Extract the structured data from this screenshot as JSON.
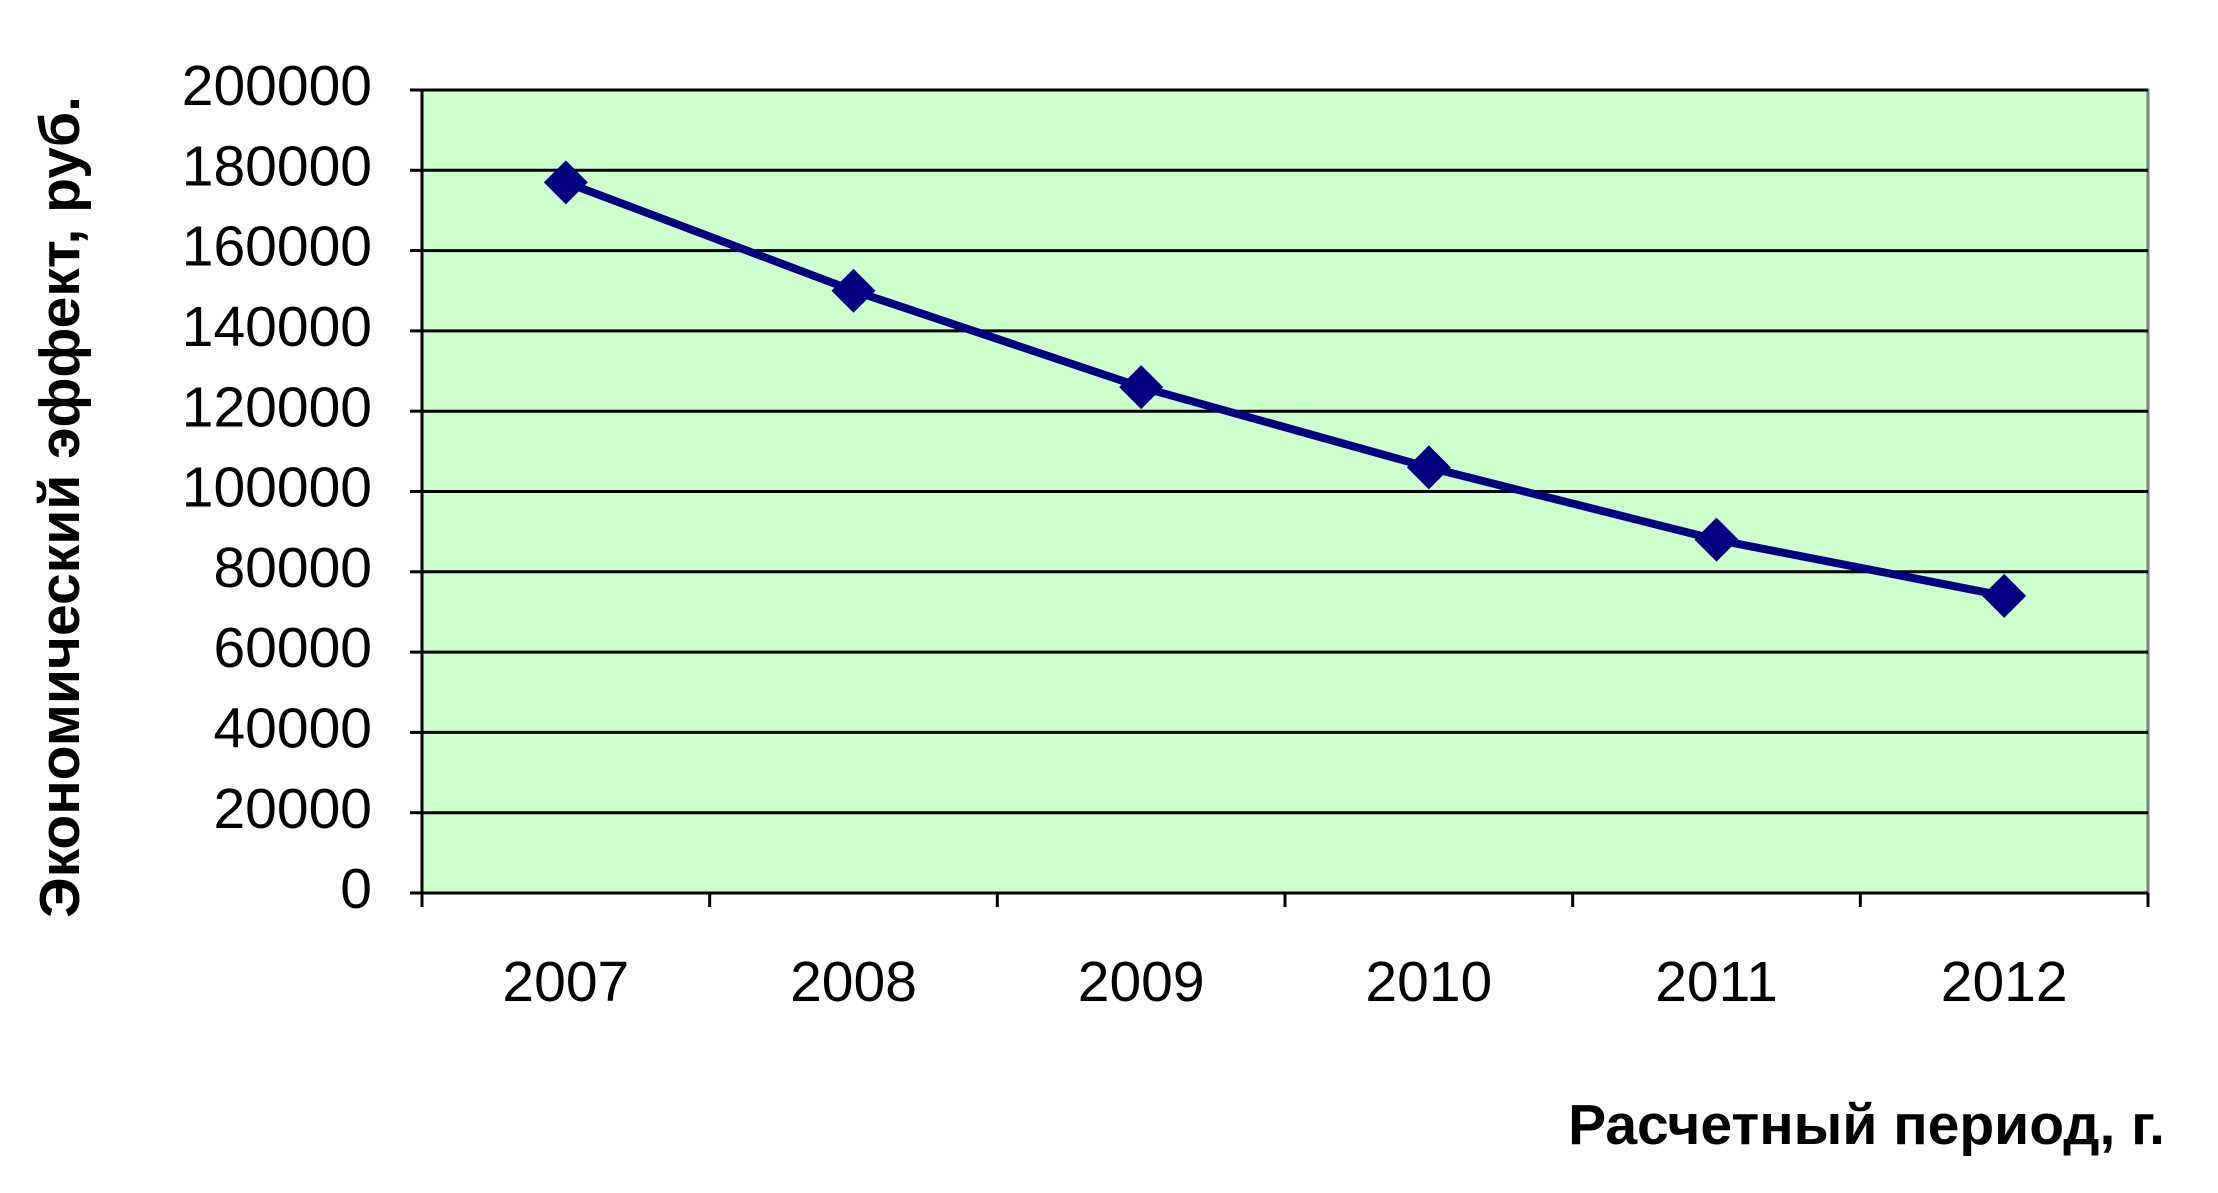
{
  "chart_data": {
    "type": "line",
    "x_label": "Расчетный период, г.",
    "y_label": "Экономический эффект, руб.",
    "categories": [
      "2007",
      "2008",
      "2009",
      "2010",
      "2011",
      "2012"
    ],
    "series": [
      {
        "name": "Экономический эффект",
        "color": "#000080",
        "values": [
          177000,
          150000,
          126000,
          106000,
          88000,
          74000
        ]
      }
    ],
    "ylim": [
      0,
      200000
    ],
    "yticks": [
      0,
      20000,
      40000,
      60000,
      80000,
      100000,
      120000,
      140000,
      160000,
      180000,
      200000
    ],
    "grid": true,
    "background": "#ccffcc"
  }
}
